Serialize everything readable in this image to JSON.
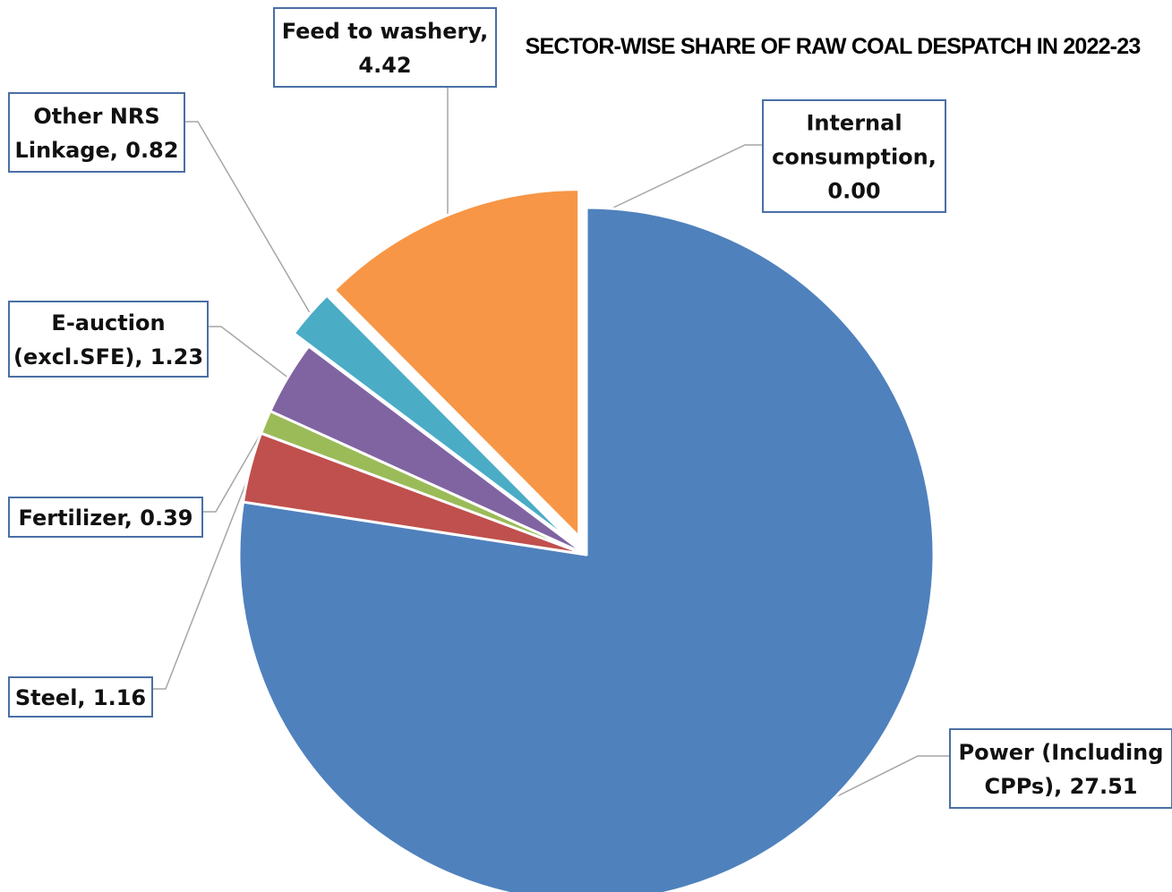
{
  "chart_data": {
    "type": "pie",
    "title": "SECTOR-WISE SHARE OF RAW COAL DESPATCH IN 2022-23",
    "slices": [
      {
        "label": "Power (Including CPPs), 27.51",
        "lines": [
          "Power (Including",
          "CPPs), 27.51"
        ],
        "value": 27.51,
        "color": "#4f81bd",
        "exploded": false
      },
      {
        "label": "Steel, 1.16",
        "lines": [
          "Steel, 1.16"
        ],
        "value": 1.16,
        "color": "#c0504d",
        "exploded": false
      },
      {
        "label": "Fertilizer, 0.39",
        "lines": [
          "Fertilizer, 0.39"
        ],
        "value": 0.39,
        "color": "#9bbb59",
        "exploded": false
      },
      {
        "label": "E-auction (excl.SFE), 1.23",
        "lines": [
          "E-auction",
          "(excl.SFE), 1.23"
        ],
        "value": 1.23,
        "color": "#8064a2",
        "exploded": false
      },
      {
        "label": "Other NRS Linkage, 0.82",
        "lines": [
          "Other NRS",
          "Linkage, 0.82"
        ],
        "value": 0.82,
        "color": "#4bacc6",
        "exploded": true
      },
      {
        "label": "Feed to washery, 4.42",
        "lines": [
          "Feed to washery,",
          "4.42"
        ],
        "value": 4.42,
        "color": "#f79646",
        "exploded": true
      },
      {
        "label": "Internal consumption, 0.00",
        "lines": [
          "Internal",
          "consumption,",
          "0.00"
        ],
        "value": 0.0,
        "color": "#2c4d75",
        "exploded": false
      }
    ],
    "legend": "none"
  }
}
